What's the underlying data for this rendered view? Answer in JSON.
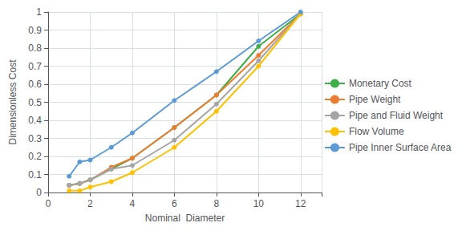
{
  "chart_data": {
    "type": "line",
    "x": [
      1,
      1.5,
      2,
      3,
      4,
      6,
      8,
      10,
      12
    ],
    "series": [
      {
        "name": "Monetary Cost",
        "color": "#3fae49",
        "values": [
          0.04,
          0.05,
          0.07,
          0.13,
          0.19,
          0.36,
          0.54,
          0.81,
          0.99
        ]
      },
      {
        "name": "Pipe Weight",
        "color": "#ed7d31",
        "values": [
          0.04,
          0.05,
          0.07,
          0.14,
          0.19,
          0.36,
          0.54,
          0.76,
          0.99
        ]
      },
      {
        "name": "Pipe and Fluid Weight",
        "color": "#a5a5a5",
        "values": [
          0.04,
          0.05,
          0.07,
          0.13,
          0.15,
          0.29,
          0.49,
          0.73,
          0.99
        ]
      },
      {
        "name": "Flow Volume",
        "color": "#ffc000",
        "values": [
          0.01,
          0.01,
          0.03,
          0.06,
          0.11,
          0.25,
          0.45,
          0.7,
          0.99
        ]
      },
      {
        "name": "Pipe Inner Surface Area",
        "color": "#5b9bd5",
        "values": [
          0.09,
          0.17,
          0.18,
          0.25,
          0.33,
          0.51,
          0.67,
          0.84,
          1.0
        ]
      }
    ],
    "xlabel": "Nominal  Diameter",
    "ylabel": "Dimensionless Cost",
    "xlim": [
      0,
      13
    ],
    "ylim": [
      0,
      1.0
    ],
    "xticks": [
      0,
      2,
      4,
      6,
      8,
      10,
      12
    ],
    "yticks": [
      0,
      0.1,
      0.2,
      0.3,
      0.4,
      0.5,
      0.6,
      0.7,
      0.8,
      0.9,
      1
    ],
    "grid": true,
    "marker": "circle",
    "legend": "right"
  }
}
